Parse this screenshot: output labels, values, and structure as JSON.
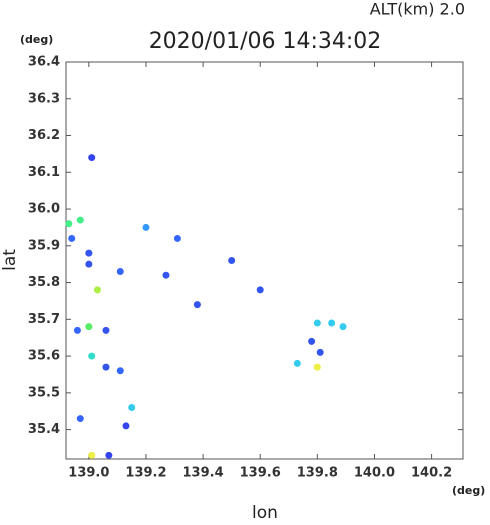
{
  "chart_data": {
    "type": "scatter",
    "title": "2020/01/06 14:34:02",
    "annotation": "ALT(km)  2.0",
    "y_unit": "(deg)",
    "x_unit": "(deg)",
    "xlabel": "lon",
    "ylabel": "lat",
    "xlim": [
      138.92,
      140.31
    ],
    "ylim": [
      35.32,
      36.4
    ],
    "xticks": [
      {
        "value": 139,
        "label": "139.0"
      },
      139.2,
      139.4,
      139.6,
      139.8,
      {
        "value": 140,
        "label": "140.0"
      },
      140.2
    ],
    "yticks": [
      35.4,
      35.5,
      35.6,
      35.7,
      35.8,
      35.9,
      {
        "value": 36,
        "label": "36.0"
      },
      36.1,
      36.2,
      36.3,
      36.4
    ],
    "x": [
      139.01,
      138.97,
      138.93,
      138.94,
      139.0,
      139.0,
      139.03,
      138.96,
      139.0,
      139.06,
      139.01,
      139.06,
      139.11,
      139.15,
      139.13,
      138.97,
      139.07,
      139.01,
      139.11,
      139.2,
      139.31,
      139.27,
      139.5,
      139.6,
      139.38,
      139.8,
      139.85,
      139.78,
      139.73,
      139.8,
      139.81,
      139.89
    ],
    "values": [
      36.14,
      35.97,
      35.96,
      35.92,
      35.88,
      35.85,
      35.78,
      35.67,
      35.68,
      35.67,
      35.6,
      35.57,
      35.56,
      35.46,
      35.41,
      35.43,
      35.33,
      35.33,
      35.83,
      35.95,
      35.92,
      35.82,
      35.86,
      35.78,
      35.74,
      35.69,
      35.69,
      35.64,
      35.58,
      35.57,
      35.61,
      35.68
    ],
    "colors": [
      "#3344ee",
      "#44ee88",
      "#44ee88",
      "#3366ff",
      "#3355ee",
      "#3355ee",
      "#aaee44",
      "#3366ff",
      "#55ee66",
      "#3355ee",
      "#33ddcc",
      "#3355ee",
      "#3366ff",
      "#33ccee",
      "#3344ee",
      "#3366ff",
      "#3344ee",
      "#eeee44",
      "#3366ff",
      "#3399ff",
      "#3366ff",
      "#3355ee",
      "#3355ee",
      "#3355ee",
      "#3355ee",
      "#33ccee",
      "#33ccee",
      "#3355ee",
      "#33ccee",
      "#eeee44",
      "#3355ee",
      "#33ccee"
    ]
  }
}
